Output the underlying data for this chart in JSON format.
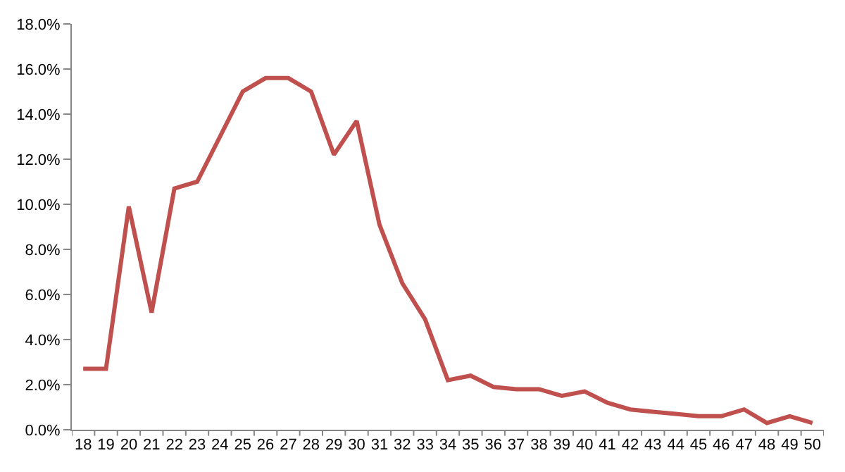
{
  "chart_data": {
    "type": "line",
    "categories": [
      "18",
      "19",
      "20",
      "21",
      "22",
      "23",
      "24",
      "25",
      "26",
      "27",
      "28",
      "29",
      "30",
      "31",
      "32",
      "33",
      "34",
      "35",
      "36",
      "37",
      "38",
      "39",
      "40",
      "41",
      "42",
      "43",
      "44",
      "45",
      "46",
      "47",
      "48",
      "49",
      "50"
    ],
    "series": [
      {
        "color": "#c0504d",
        "values": [
          2.7,
          2.7,
          9.9,
          5.2,
          10.7,
          11.0,
          13.0,
          15.0,
          15.6,
          15.6,
          15.0,
          12.2,
          13.7,
          9.1,
          6.5,
          4.9,
          2.2,
          2.4,
          1.9,
          1.8,
          1.8,
          1.5,
          1.7,
          1.2,
          0.9,
          0.8,
          0.7,
          0.6,
          0.6,
          0.9,
          0.3,
          0.6,
          0.3
        ]
      }
    ],
    "ylim": [
      0,
      18
    ],
    "yticks": [
      {
        "value": 0,
        "label": "0.0%"
      },
      {
        "value": 2,
        "label": "2.0%"
      },
      {
        "value": 4,
        "label": "4.0%"
      },
      {
        "value": 6,
        "label": "6.0%"
      },
      {
        "value": 8,
        "label": "8.0%"
      },
      {
        "value": 10,
        "label": "10.0%"
      },
      {
        "value": 12,
        "label": "12.0%"
      },
      {
        "value": 14,
        "label": "14.0%"
      },
      {
        "value": 16,
        "label": "16.0%"
      },
      {
        "value": 18,
        "label": "18.0%"
      }
    ],
    "grid": false,
    "legend": false,
    "marker": "none",
    "line_style": "solid"
  }
}
